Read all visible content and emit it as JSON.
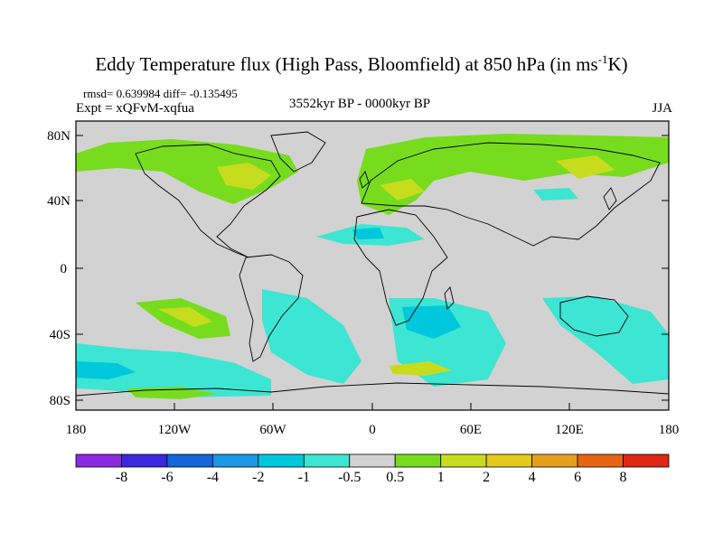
{
  "title": {
    "main": "Eddy Temperature flux (High Pass, Bloomfield) at 850 hPa (in ms",
    "sup": "-1",
    "end": "K)"
  },
  "stats": "rmsd= 0.639984 diff= -0.135495",
  "expt": "Expt = xQFvM-xqfua",
  "period": "3552kyr BP - 0000kyr BP",
  "season": "JJA",
  "lat_labels": [
    "80N",
    "40N",
    "0",
    "40S",
    "80S"
  ],
  "lon_labels": [
    "180",
    "120W",
    "60W",
    "0",
    "60E",
    "120E",
    "180"
  ],
  "colorbar": {
    "labels": [
      "-8",
      "-6",
      "-4",
      "-2",
      "-1",
      "-0.5",
      "0.5",
      "1",
      "2",
      "4",
      "6",
      "8"
    ],
    "colors": [
      "#8a2be2",
      "#3c28dc",
      "#1464dc",
      "#1e96e6",
      "#00c8dc",
      "#3ce6d2",
      "#d2d2d2",
      "#78dc1e",
      "#c8dc1e",
      "#e6c81e",
      "#e6a01e",
      "#e66414",
      "#dc2814"
    ]
  },
  "colors": {
    "land_sea_zero": "#d2d2d2",
    "coast": "#000000"
  }
}
